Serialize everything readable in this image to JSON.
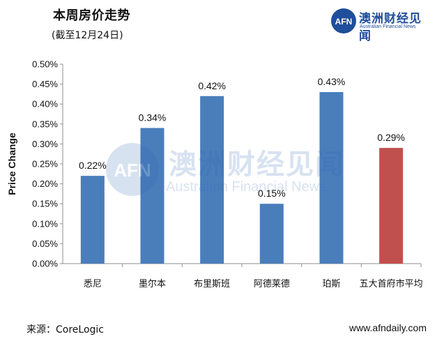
{
  "header": {
    "title": "本周房价走势",
    "subtitle": "(截至12月24日)"
  },
  "brand": {
    "name_cn": "澳洲财经见闻",
    "name_en": "Australian Financial News",
    "logo_text": "AFN"
  },
  "watermark": {
    "name_cn": "澳洲财经见闻",
    "name_en": "Australian Financial News",
    "logo_text": "AFN"
  },
  "footer": {
    "source": "来源：CoreLogic",
    "site": "www.afndaily.com"
  },
  "colors": {
    "bar_default": "#4a7ebb",
    "bar_highlight": "#c0504d",
    "axis": "#8c8c8c"
  },
  "chart_data": {
    "type": "bar",
    "title": "",
    "xlabel": "",
    "ylabel": "Price Change",
    "categories": [
      "悉尼",
      "墨尔本",
      "布里斯班",
      "阿德莱德",
      "珀斯",
      "五大首府市平均"
    ],
    "values": [
      0.22,
      0.34,
      0.42,
      0.15,
      0.43,
      0.29
    ],
    "value_labels": [
      "0.22%",
      "0.34%",
      "0.42%",
      "0.15%",
      "0.43%",
      "0.29%"
    ],
    "bar_colors": [
      "#4a7ebb",
      "#4a7ebb",
      "#4a7ebb",
      "#4a7ebb",
      "#4a7ebb",
      "#c0504d"
    ],
    "ylim": [
      0,
      0.5
    ],
    "yticks": [
      0.0,
      0.05,
      0.1,
      0.15,
      0.2,
      0.25,
      0.3,
      0.35,
      0.4,
      0.45,
      0.5
    ],
    "ytick_labels": [
      "0.00%",
      "0.05%",
      "0.10%",
      "0.15%",
      "0.20%",
      "0.25%",
      "0.30%",
      "0.35%",
      "0.40%",
      "0.45%",
      "0.50%"
    ],
    "grid": false,
    "legend": "none"
  }
}
